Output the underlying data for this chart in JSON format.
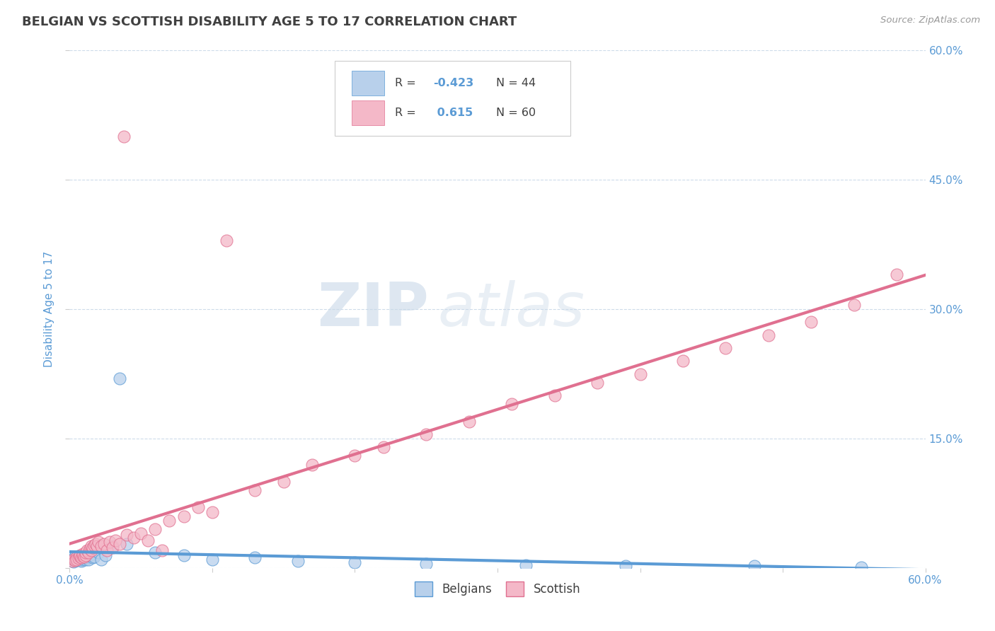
{
  "title": "BELGIAN VS SCOTTISH DISABILITY AGE 5 TO 17 CORRELATION CHART",
  "source": "Source: ZipAtlas.com",
  "ylabel": "Disability Age 5 to 17",
  "xlim": [
    0.0,
    0.6
  ],
  "ylim": [
    0.0,
    0.6
  ],
  "belgian_r": -0.423,
  "belgian_n": 44,
  "scottish_r": 0.615,
  "scottish_n": 60,
  "belgian_color": "#b8d0eb",
  "scottish_color": "#f4b8c8",
  "belgian_line_color": "#5b9bd5",
  "scottish_line_color": "#e07090",
  "background_color": "#ffffff",
  "grid_color": "#c8d8e8",
  "title_color": "#404040",
  "axis_label_color": "#5b9bd5",
  "legend_r_color": "#5b9bd5",
  "watermark_zip": "ZIP",
  "watermark_atlas": "atlas",
  "belgian_x": [
    0.002,
    0.003,
    0.003,
    0.004,
    0.004,
    0.005,
    0.005,
    0.006,
    0.006,
    0.007,
    0.007,
    0.008,
    0.008,
    0.009,
    0.009,
    0.01,
    0.01,
    0.011,
    0.011,
    0.012,
    0.013,
    0.013,
    0.014,
    0.015,
    0.016,
    0.017,
    0.018,
    0.02,
    0.022,
    0.025,
    0.03,
    0.035,
    0.04,
    0.06,
    0.08,
    0.1,
    0.13,
    0.16,
    0.2,
    0.25,
    0.32,
    0.39,
    0.48,
    0.555
  ],
  "belgian_y": [
    0.008,
    0.011,
    0.007,
    0.01,
    0.013,
    0.009,
    0.012,
    0.01,
    0.014,
    0.011,
    0.009,
    0.013,
    0.008,
    0.012,
    0.01,
    0.011,
    0.015,
    0.013,
    0.01,
    0.012,
    0.014,
    0.01,
    0.015,
    0.016,
    0.012,
    0.013,
    0.02,
    0.018,
    0.01,
    0.015,
    0.025,
    0.22,
    0.028,
    0.018,
    0.015,
    0.01,
    0.012,
    0.008,
    0.006,
    0.005,
    0.003,
    0.002,
    0.002,
    0.001
  ],
  "scottish_x": [
    0.002,
    0.003,
    0.004,
    0.005,
    0.005,
    0.006,
    0.007,
    0.007,
    0.008,
    0.009,
    0.009,
    0.01,
    0.011,
    0.011,
    0.012,
    0.013,
    0.014,
    0.015,
    0.015,
    0.016,
    0.017,
    0.018,
    0.019,
    0.02,
    0.022,
    0.024,
    0.026,
    0.028,
    0.03,
    0.032,
    0.035,
    0.038,
    0.04,
    0.045,
    0.05,
    0.055,
    0.06,
    0.065,
    0.07,
    0.08,
    0.09,
    0.1,
    0.11,
    0.13,
    0.15,
    0.17,
    0.2,
    0.22,
    0.25,
    0.28,
    0.31,
    0.34,
    0.37,
    0.4,
    0.43,
    0.46,
    0.49,
    0.52,
    0.55,
    0.58
  ],
  "scottish_y": [
    0.008,
    0.01,
    0.009,
    0.012,
    0.01,
    0.011,
    0.013,
    0.015,
    0.012,
    0.014,
    0.016,
    0.013,
    0.015,
    0.018,
    0.02,
    0.018,
    0.022,
    0.02,
    0.025,
    0.024,
    0.026,
    0.028,
    0.025,
    0.03,
    0.025,
    0.028,
    0.02,
    0.03,
    0.024,
    0.032,
    0.028,
    0.5,
    0.038,
    0.035,
    0.04,
    0.032,
    0.045,
    0.02,
    0.055,
    0.06,
    0.07,
    0.065,
    0.38,
    0.09,
    0.1,
    0.12,
    0.13,
    0.14,
    0.155,
    0.17,
    0.19,
    0.2,
    0.215,
    0.225,
    0.24,
    0.255,
    0.27,
    0.285,
    0.305,
    0.34
  ]
}
